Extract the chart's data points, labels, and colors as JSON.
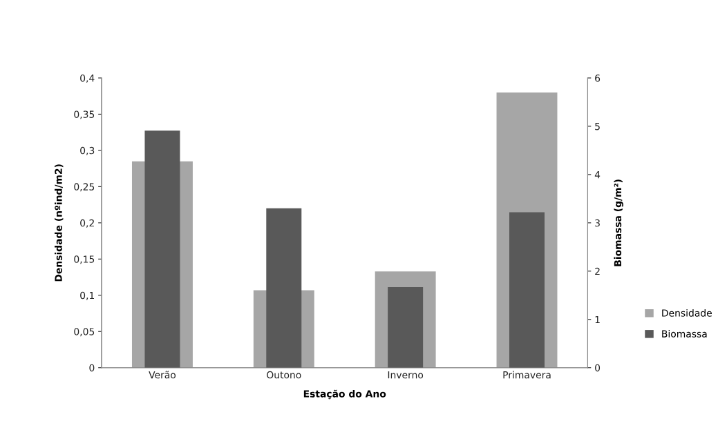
{
  "chart_data": {
    "type": "bar",
    "xlabel": "Estação do Ano",
    "ylabel": "Densidade (nºind/m2)",
    "y2label": "Biomassa (g/m²)",
    "categories": [
      "Verão",
      "Outono",
      "Inverno",
      "Primavera"
    ],
    "series": [
      {
        "name": "Densidade",
        "color": "#a6a6a6",
        "values": [
          0.285,
          0.107,
          0.133,
          0.38
        ]
      },
      {
        "name": "Biomassa",
        "color": "#595959",
        "axis": "y2",
        "values": [
          4.91,
          3.3,
          1.67,
          3.22
        ]
      }
    ],
    "ylim": [
      0,
      0.4
    ],
    "yticks": [
      0,
      {
        "value": 0.05,
        "label": "0,05"
      },
      {
        "value": 0.1,
        "label": "0,1"
      },
      {
        "value": 0.15,
        "label": "0,15"
      },
      {
        "value": 0.2,
        "label": "0,2"
      },
      {
        "value": 0.25,
        "label": "0,25"
      },
      {
        "value": 0.3,
        "label": "0,3"
      },
      {
        "value": 0.35,
        "label": "0,35"
      },
      {
        "value": 0.4,
        "label": "0,4"
      }
    ],
    "y2lim": [
      0,
      6
    ],
    "y2ticks": [
      0,
      1,
      2,
      3,
      4,
      5,
      6
    ],
    "grid": false,
    "legend": "right"
  }
}
